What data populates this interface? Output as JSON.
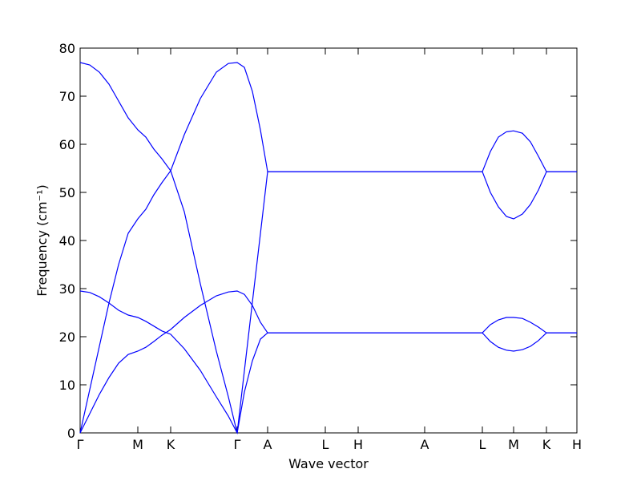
{
  "chart_data": {
    "type": "line",
    "xlabel": "Wave vector",
    "ylabel": "Frequency (cm⁻¹)",
    "x": [
      0,
      0.12,
      0.24,
      0.36,
      0.48,
      0.6,
      0.72,
      0.82,
      0.92,
      1.02,
      1.13,
      1.3,
      1.5,
      1.7,
      1.85,
      1.96,
      2.05,
      2.15,
      2.25,
      2.34,
      3.06,
      3.47,
      4.3,
      5.02,
      5.12,
      5.22,
      5.32,
      5.41,
      5.52,
      5.62,
      5.72,
      5.82,
      6.2
    ],
    "series": [
      {
        "color": "#0000ff",
        "values": [
          77,
          76.5,
          75,
          72.5,
          69,
          65.5,
          63,
          61.5,
          59,
          57,
          54.5,
          46,
          31,
          17,
          7.5,
          0,
          12.9,
          27.2,
          41.4,
          54.3,
          54.3,
          54.3,
          54.3,
          54.3,
          58.5,
          61.5,
          62.6,
          62.8,
          62.3,
          60.5,
          57.5,
          54.3,
          54.3
        ]
      },
      {
        "color": "#0000ff",
        "values": [
          0,
          9,
          18,
          27,
          35,
          41.5,
          44.5,
          46.5,
          49.5,
          52,
          54.5,
          62,
          69.5,
          75,
          76.8,
          77,
          76,
          71,
          63,
          54.3,
          54.3,
          54.3,
          54.3,
          54.3,
          50,
          47,
          45,
          44.5,
          45.5,
          47.5,
          50.5,
          54.3,
          54.3
        ]
      },
      {
        "color": "#0000ff",
        "values": [
          29.5,
          29.2,
          28.3,
          27,
          25.5,
          24.5,
          24,
          23.2,
          22.2,
          21.2,
          20.5,
          17.5,
          13,
          7.5,
          3.5,
          0,
          8.5,
          15,
          19.5,
          20.8,
          20.8,
          20.8,
          20.8,
          20.8,
          22.5,
          23.5,
          24,
          24,
          23.8,
          23,
          22,
          20.8,
          20.8
        ]
      },
      {
        "color": "#0000ff",
        "values": [
          0,
          4,
          8,
          11.5,
          14.5,
          16.3,
          17,
          17.8,
          19,
          20.3,
          21.5,
          24,
          26.5,
          28.5,
          29.3,
          29.5,
          28.8,
          26.5,
          23,
          20.8,
          20.8,
          20.8,
          20.8,
          20.8,
          19,
          17.8,
          17.2,
          17,
          17.3,
          18,
          19.2,
          20.8,
          20.8
        ]
      }
    ],
    "xlim": [
      0,
      6.2
    ],
    "xticks": [
      {
        "value": 0,
        "label": "Γ"
      },
      {
        "value": 0.72,
        "label": "M"
      },
      {
        "value": 1.13,
        "label": "K"
      },
      {
        "value": 1.96,
        "label": "Γ"
      },
      {
        "value": 2.34,
        "label": "A"
      },
      {
        "value": 3.06,
        "label": "L"
      },
      {
        "value": 3.47,
        "label": "H"
      },
      {
        "value": 4.3,
        "label": "A"
      },
      {
        "value": 5.02,
        "label": "L"
      },
      {
        "value": 5.41,
        "label": "M"
      },
      {
        "value": 5.82,
        "label": "K"
      },
      {
        "value": 6.2,
        "label": "H"
      }
    ],
    "ylim": [
      0,
      80
    ],
    "yticks": [
      0,
      10,
      20,
      30,
      40,
      50,
      60,
      70,
      80
    ]
  }
}
